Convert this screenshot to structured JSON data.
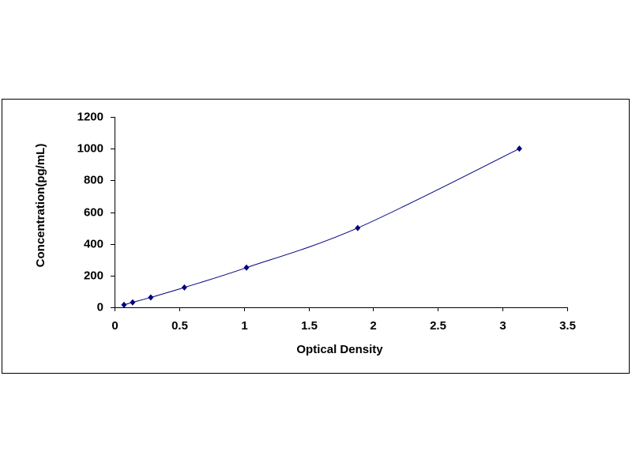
{
  "chart_data": {
    "type": "scatter",
    "x_label": "Optical Density",
    "y_label": "Concentration(pg/mL)",
    "x": [
      0.073,
      0.14,
      0.28,
      0.54,
      1.02,
      1.88,
      3.13
    ],
    "values": [
      15.6,
      31.2,
      62.5,
      125,
      250,
      500,
      1000
    ],
    "color": "#000080",
    "smooth_line": true,
    "xlim": [
      0,
      3.5
    ],
    "xticks": [
      0,
      0.5,
      1,
      1.5,
      2,
      2.5,
      3,
      3.5
    ],
    "ylim": [
      0,
      1200
    ],
    "yticks": [
      0,
      200,
      400,
      600,
      800,
      1000,
      1200
    ]
  }
}
